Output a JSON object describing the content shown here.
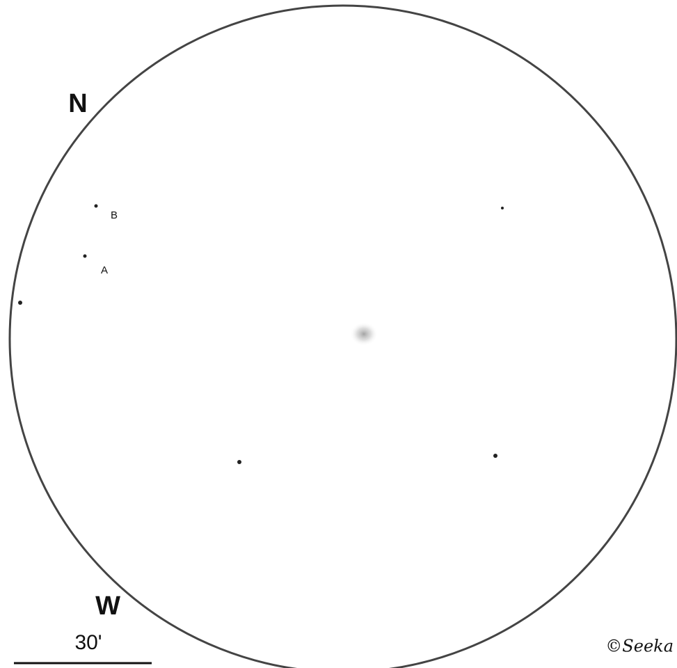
{
  "directions": {
    "north": "N",
    "west": "W"
  },
  "star_labels": {
    "a": "A",
    "b": "B"
  },
  "scale_label": "30'",
  "signature": "©Seeka"
}
